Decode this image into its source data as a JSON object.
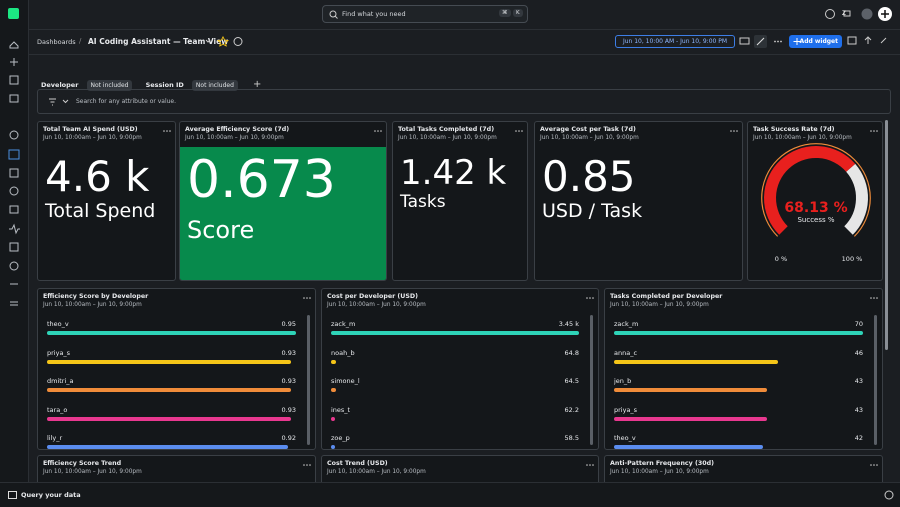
{
  "topbar": {
    "search_placeholder": "Find what you need",
    "shortcut": [
      "⌘",
      "K"
    ],
    "user_initial": "Z"
  },
  "header": {
    "breadcrumb": "Dashboards",
    "title": "AI Coding Assistant — Team View",
    "time_range": "Jun 10, 10:00 AM - Jun 10, 9:00 PM",
    "add_widget": "Add widget"
  },
  "filters": [
    {
      "label": "Developer",
      "value": "Not included"
    },
    {
      "label": "Session ID",
      "value": "Not included"
    }
  ],
  "search": {
    "placeholder": "Search for any attribute or value."
  },
  "billboards": [
    {
      "title": "Total Team AI Spend (USD)",
      "time": "Jun 10, 10:00am – Jun 10, 9:00pm",
      "value": "4.6 k",
      "unit": "Total Spend"
    },
    {
      "title": "Average Efficiency Score (7d)",
      "time": "Jun 10, 10:00am – Jun 10, 9:00pm",
      "value": "0.673",
      "unit": "Score",
      "color": "#078a4c"
    },
    {
      "title": "Total Tasks Completed (7d)",
      "time": "Jun 10, 10:00am – Jun 10, 9:00pm",
      "value": "1.42 k",
      "unit": "Tasks"
    },
    {
      "title": "Average Cost per Task (7d)",
      "time": "Jun 10, 10:00am – Jun 10, 9:00pm",
      "value": "0.85",
      "unit": "USD / Task"
    }
  ],
  "gauge": {
    "title": "Task Success Rate (7d)",
    "time": "Jun 10, 10:00am – Jun 10, 9:00pm",
    "value": 68.13,
    "value_label": "68.13 %",
    "caption": "Success %",
    "color": "#e8201e",
    "min": {
      "value": 0,
      "label": "0 %"
    },
    "max": {
      "value": 100,
      "label": "100 %"
    }
  },
  "bar_lists": [
    {
      "title": "Efficiency Score by Developer",
      "time": "Jun 10, 10:00am – Jun 10, 9:00pm",
      "categories": [
        "theo_v",
        "priya_s",
        "dmitri_a",
        "tara_o",
        "lily_r"
      ],
      "values": [
        0.95,
        0.93,
        0.93,
        0.93,
        0.92
      ],
      "colors": [
        "#2ed3b7",
        "#f5c518",
        "#f08c3a",
        "#e8388f",
        "#5b8def"
      ]
    },
    {
      "title": "Cost per Developer (USD)",
      "time": "Jun 10, 10:00am – Jun 10, 9:00pm",
      "categories": [
        "zack_m",
        "noah_b",
        "simone_l",
        "ines_t",
        "zoe_p"
      ],
      "values": [
        3450,
        64.8,
        64.5,
        62.2,
        58.5
      ],
      "value_labels": [
        "3.45 k",
        "64.8",
        "64.5",
        "62.2",
        "58.5"
      ],
      "colors": [
        "#2ed3b7",
        "#f5c518",
        "#f08c3a",
        "#e8388f",
        "#5b8def"
      ]
    },
    {
      "title": "Tasks Completed per Developer",
      "time": "Jun 10, 10:00am – Jun 10, 9:00pm",
      "categories": [
        "zack_m",
        "anna_c",
        "jen_b",
        "priya_s",
        "theo_v"
      ],
      "values": [
        70,
        46,
        43,
        43,
        42
      ],
      "colors": [
        "#2ed3b7",
        "#f5c518",
        "#f08c3a",
        "#e8388f",
        "#5b8def"
      ]
    }
  ],
  "bottom_widgets": [
    {
      "title": "Efficiency Score Trend",
      "time": "Jun 10, 10:00am – Jun 10, 9:00pm"
    },
    {
      "title": "Cost Trend (USD)",
      "time": "Jun 10, 10:00am – Jun 10, 9:00pm"
    },
    {
      "title": "Anti-Pattern Frequency (30d)",
      "time": "Jun 10, 10:00am – Jun 10, 9:00pm"
    }
  ],
  "footer": {
    "query": "Query your data"
  }
}
